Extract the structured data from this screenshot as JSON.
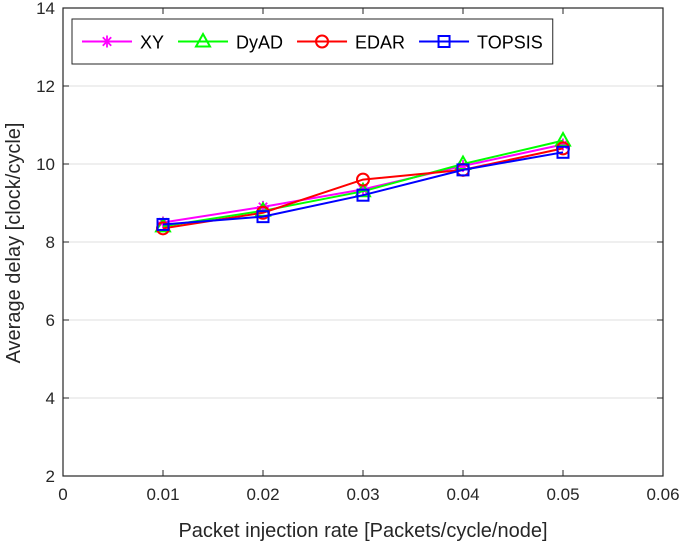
{
  "chart_data": {
    "type": "line",
    "xlabel": "Packet injection rate [Packets/cycle/node]",
    "ylabel": "Average delay [clock/cycle]",
    "xlim": [
      0,
      0.06
    ],
    "ylim": [
      2,
      14
    ],
    "xticks": [
      "0",
      "0.01",
      "0.02",
      "0.03",
      "0.04",
      "0.05",
      "0.06"
    ],
    "yticks": [
      "2",
      "4",
      "6",
      "8",
      "10",
      "12",
      "14"
    ],
    "x": [
      0.01,
      0.02,
      0.03,
      0.04,
      0.05
    ],
    "grid": "horizontal",
    "legend_position": "top",
    "series": [
      {
        "name": "XY",
        "values": [
          8.5,
          8.9,
          9.35,
          9.95,
          10.5
        ],
        "color": "#ff00ff",
        "marker": "asterisk"
      },
      {
        "name": "DyAD",
        "values": [
          8.4,
          8.8,
          9.3,
          10.0,
          10.6
        ],
        "color": "#00ff00",
        "marker": "triangle"
      },
      {
        "name": "EDAR",
        "values": [
          8.35,
          8.75,
          9.6,
          9.85,
          10.4
        ],
        "color": "#ff0000",
        "marker": "circle"
      },
      {
        "name": "TOPSIS",
        "values": [
          8.45,
          8.65,
          9.2,
          9.85,
          10.3
        ],
        "color": "#0000ff",
        "marker": "square"
      }
    ]
  }
}
